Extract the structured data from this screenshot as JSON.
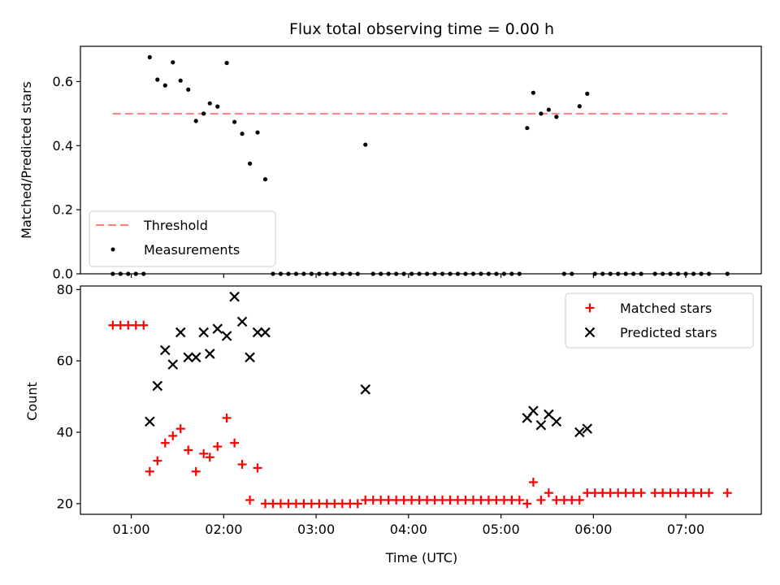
{
  "chart_data": [
    {
      "type": "scatter",
      "title": "Flux total observing time = 0.00 h",
      "xlabel": "",
      "ylabel": "Matched/Predicted stars",
      "xlim": [
        "00:27",
        "07:49"
      ],
      "ylim": [
        0,
        0.71
      ],
      "y_ticks": [
        "0.0",
        "0.2",
        "0.4",
        "0.6"
      ],
      "y_tick_values": [
        0,
        0.2,
        0.4,
        0.6
      ],
      "grid": false,
      "legend_position": "lower-left",
      "threshold": {
        "name": "Threshold",
        "color": "#ff7f7f",
        "value": 0.5,
        "x_range": [
          "00:48",
          "07:27"
        ]
      },
      "series": [
        {
          "name": "Measurements",
          "color": "#000000",
          "points": [
            [
              "00:48",
              0
            ],
            [
              "00:53",
              0
            ],
            [
              "00:58",
              0
            ],
            [
              "01:03",
              0
            ],
            [
              "01:08",
              0
            ],
            [
              "01:12",
              0.676
            ],
            [
              "01:17",
              0.606
            ],
            [
              "01:22",
              0.588
            ],
            [
              "01:27",
              0.66
            ],
            [
              "01:32",
              0.603
            ],
            [
              "01:37",
              0.575
            ],
            [
              "01:42",
              0.477
            ],
            [
              "01:47",
              0.5
            ],
            [
              "01:51",
              0.532
            ],
            [
              "01:56",
              0.522
            ],
            [
              "02:02",
              0.658
            ],
            [
              "02:07",
              0.474
            ],
            [
              "02:12",
              0.437
            ],
            [
              "02:17",
              0.344
            ],
            [
              "02:22",
              0.441
            ],
            [
              "02:27",
              0.295
            ],
            [
              "02:32",
              0
            ],
            [
              "02:37",
              0
            ],
            [
              "02:42",
              0
            ],
            [
              "02:47",
              0
            ],
            [
              "02:52",
              0
            ],
            [
              "02:57",
              0
            ],
            [
              "03:02",
              0
            ],
            [
              "03:07",
              0
            ],
            [
              "03:12",
              0
            ],
            [
              "03:17",
              0
            ],
            [
              "03:22",
              0
            ],
            [
              "03:27",
              0
            ],
            [
              "03:32",
              0.403
            ],
            [
              "03:37",
              0
            ],
            [
              "03:42",
              0
            ],
            [
              "03:47",
              0
            ],
            [
              "03:52",
              0
            ],
            [
              "03:57",
              0
            ],
            [
              "04:02",
              0
            ],
            [
              "04:07",
              0
            ],
            [
              "04:12",
              0
            ],
            [
              "04:17",
              0
            ],
            [
              "04:22",
              0
            ],
            [
              "04:27",
              0
            ],
            [
              "04:32",
              0
            ],
            [
              "04:37",
              0
            ],
            [
              "04:42",
              0
            ],
            [
              "04:47",
              0
            ],
            [
              "04:52",
              0
            ],
            [
              "04:57",
              0
            ],
            [
              "05:02",
              0
            ],
            [
              "05:07",
              0
            ],
            [
              "05:12",
              0
            ],
            [
              "05:17",
              0.455
            ],
            [
              "05:21",
              0.565
            ],
            [
              "05:26",
              0.5
            ],
            [
              "05:31",
              0.512
            ],
            [
              "05:36",
              0.49
            ],
            [
              "05:41",
              0
            ],
            [
              "05:46",
              0
            ],
            [
              "05:51",
              0.523
            ],
            [
              "05:56",
              0.562
            ],
            [
              "06:01",
              0
            ],
            [
              "06:06",
              0
            ],
            [
              "06:11",
              0
            ],
            [
              "06:16",
              0
            ],
            [
              "06:21",
              0
            ],
            [
              "06:26",
              0
            ],
            [
              "06:31",
              0
            ],
            [
              "06:40",
              0
            ],
            [
              "06:45",
              0
            ],
            [
              "06:50",
              0
            ],
            [
              "06:55",
              0
            ],
            [
              "07:00",
              0
            ],
            [
              "07:05",
              0
            ],
            [
              "07:10",
              0
            ],
            [
              "07:15",
              0
            ],
            [
              "07:27",
              0
            ]
          ]
        }
      ]
    },
    {
      "type": "scatter",
      "title": "",
      "xlabel": "Time (UTC)",
      "ylabel": "Count",
      "xlim": [
        "00:27",
        "07:49"
      ],
      "ylim": [
        17,
        81
      ],
      "x_ticks": [
        "01:00",
        "02:00",
        "03:00",
        "04:00",
        "05:00",
        "06:00",
        "07:00"
      ],
      "y_ticks": [
        "20",
        "40",
        "60",
        "80"
      ],
      "y_tick_values": [
        20,
        40,
        60,
        80
      ],
      "grid": false,
      "legend_position": "top-right",
      "series": [
        {
          "name": "Matched stars",
          "color": "#ff0000",
          "marker": "plus",
          "points": [
            [
              "00:48",
              70
            ],
            [
              "00:53",
              70
            ],
            [
              "00:58",
              70
            ],
            [
              "01:03",
              70
            ],
            [
              "01:08",
              70
            ],
            [
              "01:12",
              29
            ],
            [
              "01:17",
              32
            ],
            [
              "01:22",
              37
            ],
            [
              "01:27",
              39
            ],
            [
              "01:32",
              41
            ],
            [
              "01:37",
              35
            ],
            [
              "01:42",
              29
            ],
            [
              "01:47",
              34
            ],
            [
              "01:51",
              33
            ],
            [
              "01:56",
              36
            ],
            [
              "02:02",
              44
            ],
            [
              "02:07",
              37
            ],
            [
              "02:12",
              31
            ],
            [
              "02:17",
              21
            ],
            [
              "02:22",
              30
            ],
            [
              "02:27",
              20
            ],
            [
              "02:32",
              20
            ],
            [
              "02:37",
              20
            ],
            [
              "02:42",
              20
            ],
            [
              "02:47",
              20
            ],
            [
              "02:52",
              20
            ],
            [
              "02:57",
              20
            ],
            [
              "03:02",
              20
            ],
            [
              "03:07",
              20
            ],
            [
              "03:12",
              20
            ],
            [
              "03:17",
              20
            ],
            [
              "03:22",
              20
            ],
            [
              "03:27",
              20
            ],
            [
              "03:32",
              21
            ],
            [
              "03:37",
              21
            ],
            [
              "03:42",
              21
            ],
            [
              "03:47",
              21
            ],
            [
              "03:52",
              21
            ],
            [
              "03:57",
              21
            ],
            [
              "04:02",
              21
            ],
            [
              "04:07",
              21
            ],
            [
              "04:12",
              21
            ],
            [
              "04:17",
              21
            ],
            [
              "04:22",
              21
            ],
            [
              "04:27",
              21
            ],
            [
              "04:32",
              21
            ],
            [
              "04:37",
              21
            ],
            [
              "04:42",
              21
            ],
            [
              "04:47",
              21
            ],
            [
              "04:52",
              21
            ],
            [
              "04:57",
              21
            ],
            [
              "05:02",
              21
            ],
            [
              "05:07",
              21
            ],
            [
              "05:12",
              21
            ],
            [
              "05:17",
              20
            ],
            [
              "05:21",
              26
            ],
            [
              "05:26",
              21
            ],
            [
              "05:31",
              23
            ],
            [
              "05:36",
              21
            ],
            [
              "05:41",
              21
            ],
            [
              "05:46",
              21
            ],
            [
              "05:51",
              21
            ],
            [
              "05:56",
              23
            ],
            [
              "06:01",
              23
            ],
            [
              "06:06",
              23
            ],
            [
              "06:11",
              23
            ],
            [
              "06:16",
              23
            ],
            [
              "06:21",
              23
            ],
            [
              "06:26",
              23
            ],
            [
              "06:31",
              23
            ],
            [
              "06:40",
              23
            ],
            [
              "06:45",
              23
            ],
            [
              "06:50",
              23
            ],
            [
              "06:55",
              23
            ],
            [
              "07:00",
              23
            ],
            [
              "07:05",
              23
            ],
            [
              "07:10",
              23
            ],
            [
              "07:15",
              23
            ],
            [
              "07:27",
              23
            ]
          ]
        },
        {
          "name": "Predicted stars",
          "color": "#000000",
          "marker": "x",
          "points": [
            [
              "01:12",
              43
            ],
            [
              "01:17",
              53
            ],
            [
              "01:22",
              63
            ],
            [
              "01:27",
              59
            ],
            [
              "01:32",
              68
            ],
            [
              "01:37",
              61
            ],
            [
              "01:42",
              61
            ],
            [
              "01:47",
              68
            ],
            [
              "01:51",
              62
            ],
            [
              "01:56",
              69
            ],
            [
              "02:02",
              67
            ],
            [
              "02:07",
              78
            ],
            [
              "02:12",
              71
            ],
            [
              "02:17",
              61
            ],
            [
              "02:22",
              68
            ],
            [
              "02:27",
              68
            ],
            [
              "03:32",
              52
            ],
            [
              "05:17",
              44
            ],
            [
              "05:21",
              46
            ],
            [
              "05:26",
              42
            ],
            [
              "05:31",
              45
            ],
            [
              "05:36",
              43
            ],
            [
              "05:51",
              40
            ],
            [
              "05:56",
              41
            ]
          ]
        }
      ]
    }
  ]
}
